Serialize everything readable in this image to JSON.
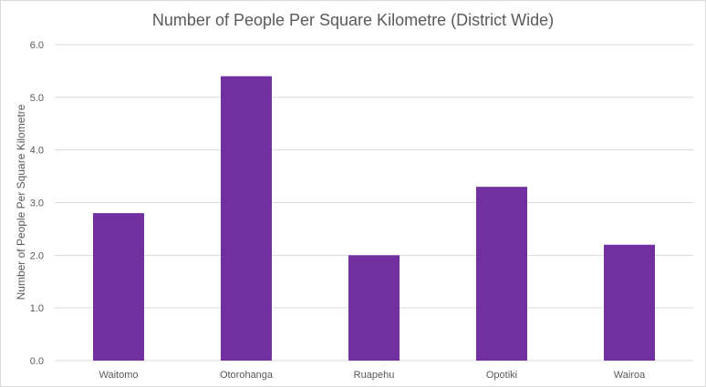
{
  "chart_data": {
    "type": "bar",
    "title": "Number of People Per Square Kilometre (District Wide)",
    "xlabel": "",
    "ylabel": "Number of People Per Square Kilometre",
    "categories": [
      "Waitomo",
      "Otorohanga",
      "Ruapehu",
      "Opotiki",
      "Wairoa"
    ],
    "values": [
      2.8,
      5.4,
      2.0,
      3.3,
      2.2
    ],
    "ylim": [
      0,
      6
    ],
    "yticks": [
      "0.0",
      "1.0",
      "2.0",
      "3.0",
      "4.0",
      "5.0",
      "6.0"
    ],
    "grid": true,
    "legend": "none",
    "bar_color": "#7030a0",
    "grid_color": "#d9d9d9",
    "text_color": "#595959"
  }
}
